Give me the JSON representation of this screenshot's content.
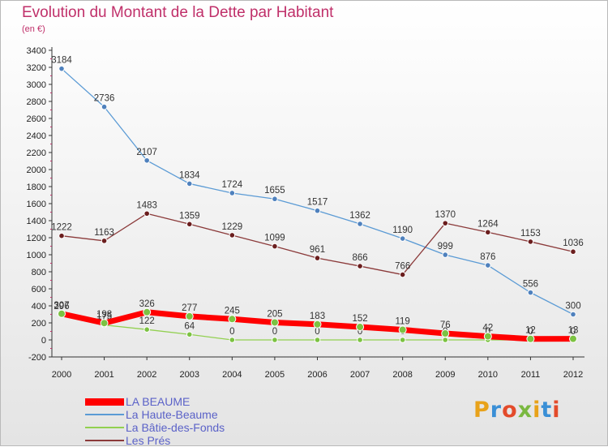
{
  "title": "Evolution du Montant de la Dette par Habitant",
  "subtitle": "(en €)",
  "logo": "Proxiti",
  "chart_data": {
    "type": "line",
    "title": "Evolution du Montant de la Dette par Habitant",
    "xlabel": "",
    "ylabel": "(en €)",
    "ylim": [
      -200,
      3400
    ],
    "yticks": [
      -200,
      0,
      200,
      400,
      600,
      800,
      1000,
      1200,
      1400,
      1600,
      1800,
      2000,
      2200,
      2400,
      2600,
      2800,
      3000,
      3200,
      3400
    ],
    "grid": false,
    "legend_position": "bottom-left",
    "x": [
      "2000",
      "2001",
      "2002",
      "2003",
      "2004",
      "2005",
      "2006",
      "2007",
      "2008",
      "2009",
      "2010",
      "2011",
      "2012"
    ],
    "series": [
      {
        "name": "La Haute-Beaume",
        "color": "#5b9bd5",
        "width": 1.3,
        "marker_color": "#4f81bd",
        "values": [
          3184,
          2736,
          2107,
          1834,
          1724,
          1655,
          1517,
          1362,
          1190,
          999,
          876,
          556,
          300
        ],
        "labels": [
          "3184",
          "2736",
          "2107",
          "1834",
          "1724",
          "1655",
          "1517",
          "1362",
          "1190",
          "999",
          "876",
          "556",
          "300"
        ]
      },
      {
        "name": "Les Prés",
        "color": "#8b3a3a",
        "width": 1.3,
        "marker_color": "#6b1e1e",
        "values": [
          1222,
          1163,
          1483,
          1359,
          1229,
          1099,
          961,
          866,
          766,
          1370,
          1264,
          1153,
          1036
        ],
        "labels": [
          "1222",
          "1163",
          "1483",
          "1359",
          "1229",
          "1099",
          "961",
          "866",
          "766",
          "1370",
          "1264",
          "1153",
          "1036"
        ]
      },
      {
        "name": "La Bâtie-des-Fonds",
        "color": "#92d050",
        "width": 1.3,
        "marker_color": "#7cc242",
        "values": [
          296,
          175,
          122,
          64,
          0,
          0,
          0,
          0,
          0,
          0,
          0,
          0,
          0
        ],
        "labels": [
          "296",
          "175",
          "122",
          "64",
          "0",
          "0",
          "0",
          "0",
          "0",
          "0",
          "0",
          "0",
          "0"
        ]
      },
      {
        "name": "LA BEAUME",
        "color": "#ff0000",
        "width": 7,
        "marker_color": "#7cc242",
        "values": [
          307,
          198,
          326,
          277,
          245,
          205,
          183,
          152,
          119,
          76,
          42,
          12,
          13
        ],
        "labels": [
          "307",
          "198",
          "326",
          "277",
          "245",
          "205",
          "183",
          "152",
          "119",
          "76",
          "42",
          "12",
          "13"
        ]
      }
    ]
  },
  "legend": [
    {
      "label": "LA BEAUME",
      "color": "#ff0000",
      "thick": true
    },
    {
      "label": "La Haute-Beaume",
      "color": "#5b9bd5",
      "thick": false
    },
    {
      "label": "La Bâtie-des-Fonds",
      "color": "#92d050",
      "thick": false
    },
    {
      "label": "Les Prés",
      "color": "#8b3a3a",
      "thick": false
    }
  ],
  "logo_colors": [
    "#e8a21a",
    "#3a8fd6",
    "#e34b2b",
    "#7ab840",
    "#e8a21a",
    "#3a8fd6",
    "#e34b2b"
  ]
}
